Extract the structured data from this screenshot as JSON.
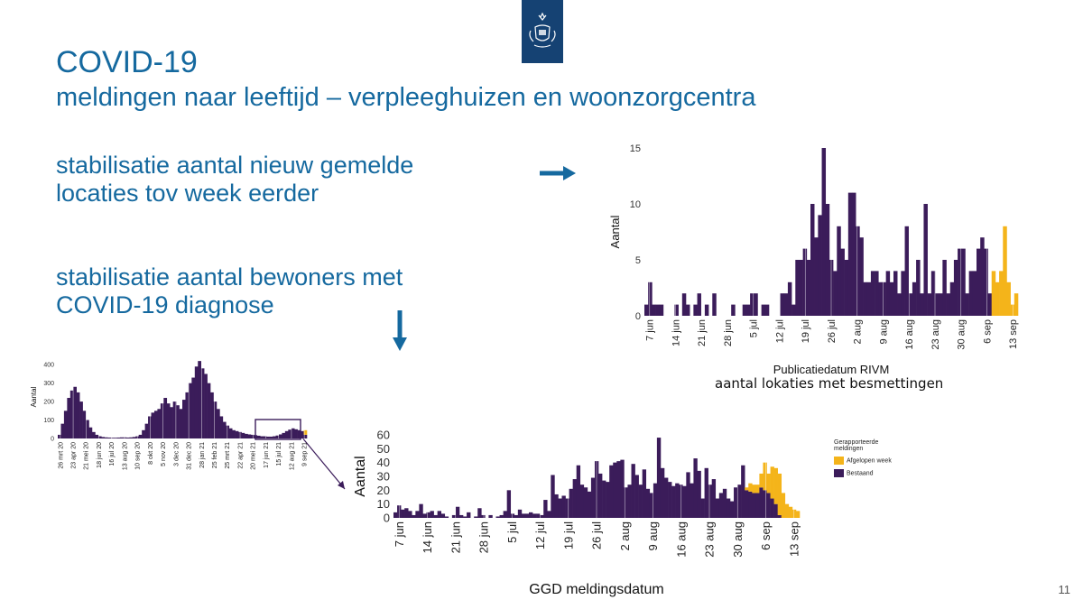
{
  "slide": {
    "title": "COVID-19",
    "subtitle": "meldingen naar leeftijd – verpleeghuizen en woonzorgcentra",
    "bullet1_line1": "stabilisatie aantal nieuw gemelde",
    "bullet1_line2": "locaties tov week eerder",
    "bullet2_line1": "stabilisatie aantal bewoners met",
    "bullet2_line2": "COVID-19 diagnose",
    "page_number": "11",
    "caption_locations": "aantal lokaties met besmettingen"
  },
  "colors": {
    "brand_blue": "#15699f",
    "logo_blue": "#154273",
    "existing": "#3b1c5a",
    "last_week": "#f4b41a",
    "arrow": "#15699f"
  },
  "icons": {
    "logo": "rijksoverheid-crest-icon",
    "arrow_right": "arrow-right-icon",
    "arrow_down": "arrow-down-icon"
  },
  "legend": {
    "title_line1": "Gerapporteerde",
    "title_line2": "meldingen",
    "items": [
      {
        "label": "Afgelopen week",
        "color": "#f4b41a"
      },
      {
        "label": "Bestaand",
        "color": "#3b1c5a"
      }
    ]
  },
  "chart_data": [
    {
      "id": "locations",
      "type": "bar",
      "ylabel": "Aantal",
      "xlabel": "Publicatiedatum RIVM",
      "ylim": [
        0,
        15
      ],
      "yticks": [
        0,
        5,
        10,
        15
      ],
      "xtick_labels": [
        "7 jun",
        "14 jun",
        "21 jun",
        "28 jun",
        "5 jul",
        "12 jul",
        "19 jul",
        "26 jul",
        "2 aug",
        "9 aug",
        "16 aug",
        "23 aug",
        "30 aug",
        "6 sep",
        "13 sep"
      ],
      "start_label": "7 jun",
      "grid": true,
      "series": [
        {
          "name": "Bestaand",
          "values": [
            1,
            3,
            1,
            1,
            1,
            0,
            0,
            0,
            1,
            0,
            2,
            1,
            0,
            1,
            2,
            0,
            1,
            0,
            2,
            0,
            0,
            0,
            0,
            1,
            0,
            0,
            1,
            1,
            2,
            2,
            0,
            1,
            1,
            0,
            0,
            0,
            2,
            2,
            3,
            1,
            5,
            5,
            6,
            5,
            10,
            7,
            9,
            15,
            10,
            5,
            4,
            8,
            6,
            5,
            11,
            11,
            8,
            7,
            3,
            3,
            4,
            4,
            3,
            3,
            4,
            3,
            4,
            2,
            4,
            8,
            2,
            3,
            5,
            2,
            10,
            2,
            4,
            2,
            2,
            5,
            2,
            3,
            5,
            6,
            6,
            2,
            4,
            4,
            6,
            7,
            6,
            2,
            0,
            0,
            0,
            0,
            0,
            0,
            0
          ]
        },
        {
          "name": "Afgelopen week",
          "values": [
            0,
            0,
            0,
            0,
            0,
            0,
            0,
            0,
            0,
            0,
            0,
            0,
            0,
            0,
            0,
            0,
            0,
            0,
            0,
            0,
            0,
            0,
            0,
            0,
            0,
            0,
            0,
            0,
            0,
            0,
            0,
            0,
            0,
            0,
            0,
            0,
            0,
            0,
            0,
            0,
            0,
            0,
            0,
            0,
            0,
            0,
            0,
            0,
            0,
            0,
            0,
            0,
            0,
            0,
            0,
            0,
            0,
            0,
            0,
            0,
            0,
            0,
            0,
            0,
            0,
            0,
            0,
            0,
            0,
            0,
            0,
            0,
            0,
            0,
            0,
            0,
            0,
            0,
            0,
            0,
            0,
            0,
            0,
            0,
            0,
            0,
            0,
            0,
            0,
            0,
            0,
            0,
            4,
            3,
            4,
            8,
            3,
            1,
            2
          ]
        }
      ]
    },
    {
      "id": "residents",
      "type": "bar",
      "ylabel": "Aantal",
      "xlabel": "GGD meldingsdatum",
      "ylim": [
        0,
        60
      ],
      "yticks": [
        0,
        10,
        20,
        30,
        40,
        50,
        60
      ],
      "xtick_labels": [
        "7 jun",
        "14 jun",
        "21 jun",
        "28 jun",
        "5 jul",
        "12 jul",
        "19 jul",
        "26 jul",
        "2 aug",
        "9 aug",
        "16 aug",
        "23 aug",
        "30 aug",
        "6 sep",
        "13 sep"
      ],
      "grid": true,
      "series": [
        {
          "name": "Bestaand",
          "values": [
            4,
            9,
            6,
            7,
            5,
            2,
            5,
            10,
            3,
            4,
            5,
            2,
            5,
            3,
            1,
            0,
            2,
            8,
            2,
            1,
            4,
            0,
            1,
            7,
            2,
            0,
            2,
            0,
            1,
            2,
            5,
            20,
            3,
            2,
            6,
            3,
            3,
            4,
            3,
            3,
            2,
            13,
            5,
            31,
            17,
            14,
            16,
            14,
            21,
            28,
            38,
            24,
            22,
            19,
            29,
            41,
            32,
            27,
            26,
            38,
            40,
            41,
            42,
            22,
            24,
            39,
            31,
            24,
            35,
            21,
            18,
            25,
            58,
            36,
            29,
            26,
            23,
            25,
            24,
            23,
            33,
            25,
            43,
            34,
            14,
            36,
            24,
            28,
            14,
            18,
            21,
            14,
            12,
            22,
            24,
            38,
            20,
            19,
            18,
            18,
            22,
            20,
            18,
            14,
            10,
            2,
            0,
            0,
            0,
            0,
            0
          ]
        },
        {
          "name": "Afgelopen week",
          "values": [
            0,
            0,
            0,
            0,
            0,
            0,
            0,
            0,
            0,
            0,
            0,
            0,
            0,
            0,
            0,
            0,
            0,
            0,
            0,
            0,
            0,
            0,
            0,
            0,
            0,
            0,
            0,
            0,
            0,
            0,
            0,
            0,
            0,
            0,
            0,
            0,
            0,
            0,
            0,
            0,
            0,
            0,
            0,
            0,
            0,
            0,
            0,
            0,
            0,
            0,
            0,
            0,
            0,
            0,
            0,
            0,
            0,
            0,
            0,
            0,
            0,
            0,
            0,
            0,
            0,
            0,
            0,
            0,
            0,
            0,
            0,
            0,
            0,
            0,
            0,
            0,
            0,
            0,
            0,
            0,
            0,
            0,
            0,
            0,
            0,
            0,
            0,
            0,
            0,
            0,
            0,
            0,
            0,
            0,
            0,
            0,
            2,
            6,
            6,
            6,
            10,
            20,
            14,
            23,
            26,
            30,
            18,
            10,
            8,
            6,
            5
          ]
        }
      ]
    },
    {
      "id": "overview",
      "type": "bar",
      "ylabel": "Aantal",
      "xlabel": "",
      "ylim": [
        0,
        450
      ],
      "yticks": [
        0,
        100,
        200,
        300,
        400
      ],
      "xtick_labels": [
        "26 mrt 20",
        "23 apr 20",
        "21 mei 20",
        "18 jun 20",
        "16 jul 20",
        "13 aug 20",
        "10 sep 20",
        "8 okt 20",
        "5 nov 20",
        "3 dec 20",
        "31 dec 20",
        "28 jan 21",
        "25 feb 21",
        "25 mrt 21",
        "22 apr 21",
        "20 mei 21",
        "17 jun 21",
        "15 jul 21",
        "12 aug 21",
        "9 sep 21"
      ],
      "grid": true,
      "series": [
        {
          "name": "Bestaand",
          "values": [
            20,
            80,
            150,
            220,
            260,
            280,
            250,
            200,
            150,
            100,
            60,
            35,
            20,
            12,
            8,
            6,
            5,
            4,
            4,
            5,
            6,
            6,
            5,
            6,
            8,
            12,
            20,
            45,
            80,
            120,
            140,
            150,
            160,
            190,
            220,
            190,
            170,
            200,
            180,
            160,
            210,
            250,
            300,
            330,
            390,
            420,
            380,
            350,
            300,
            250,
            200,
            160,
            120,
            90,
            70,
            55,
            45,
            40,
            35,
            30,
            25,
            22,
            20,
            18,
            15,
            12,
            12,
            10,
            10,
            12,
            16,
            22,
            30,
            40,
            48,
            55,
            50,
            45,
            40,
            20
          ]
        },
        {
          "name": "Afgelopen week",
          "values": [
            0,
            0,
            0,
            0,
            0,
            0,
            0,
            0,
            0,
            0,
            0,
            0,
            0,
            0,
            0,
            0,
            0,
            0,
            0,
            0,
            0,
            0,
            0,
            0,
            0,
            0,
            0,
            0,
            0,
            0,
            0,
            0,
            0,
            0,
            0,
            0,
            0,
            0,
            0,
            0,
            0,
            0,
            0,
            0,
            0,
            0,
            0,
            0,
            0,
            0,
            0,
            0,
            0,
            0,
            0,
            0,
            0,
            0,
            0,
            0,
            0,
            0,
            0,
            0,
            0,
            0,
            0,
            0,
            0,
            0,
            0,
            0,
            0,
            0,
            0,
            0,
            0,
            0,
            0,
            25
          ]
        }
      ]
    }
  ]
}
